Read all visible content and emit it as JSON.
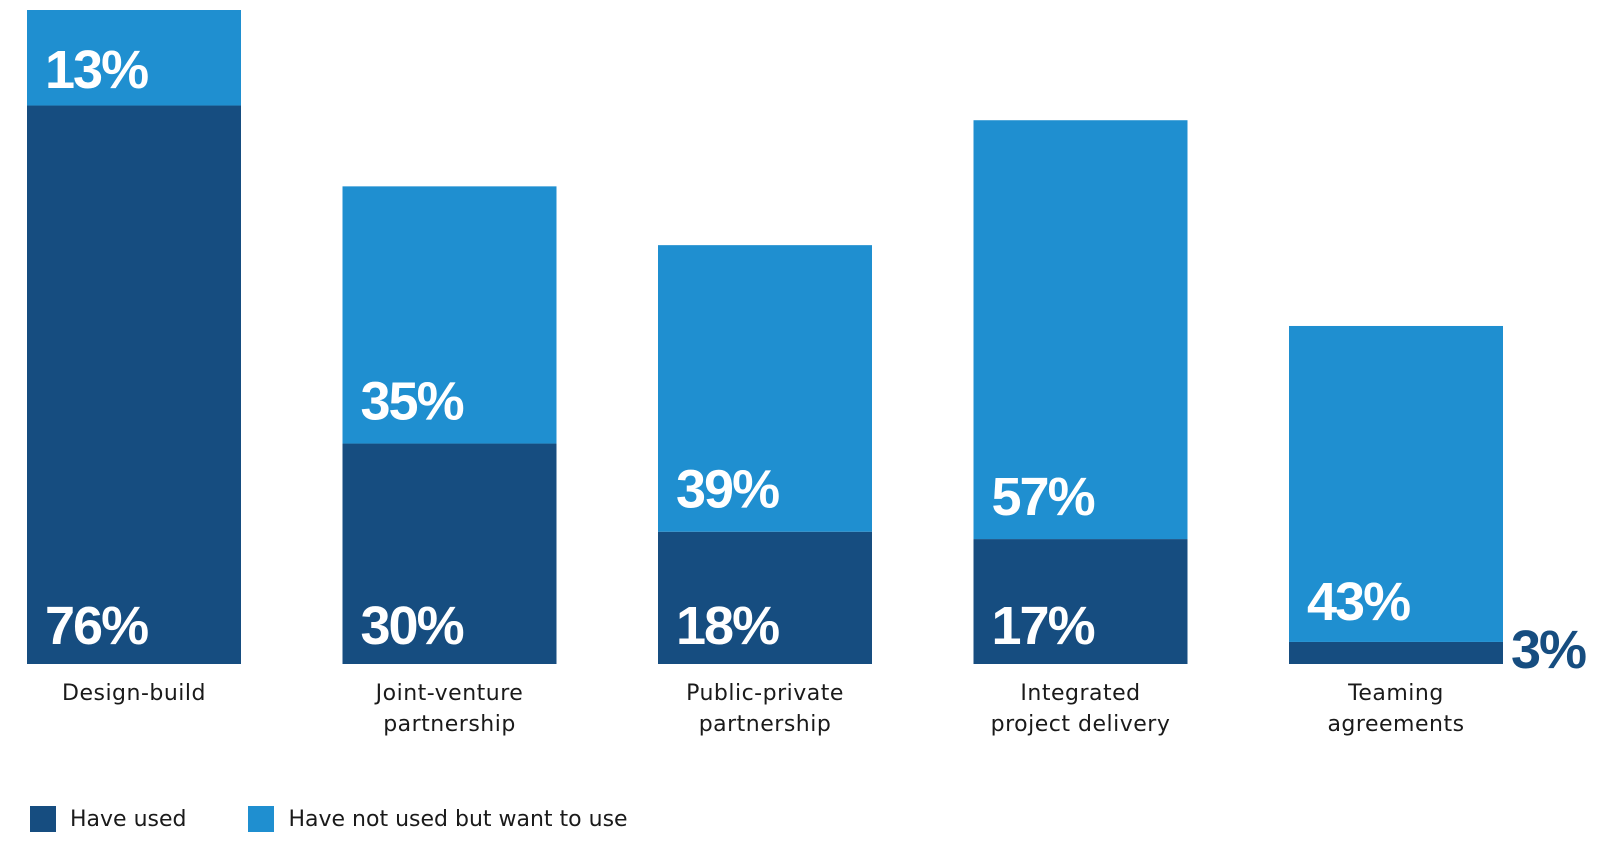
{
  "colors": {
    "have_used": "#164d80",
    "want_to_use": "#1f8fd0"
  },
  "chart_data": {
    "type": "bar",
    "stacked": true,
    "categories": [
      [
        "Design-build"
      ],
      [
        "Joint-venture",
        "partnership"
      ],
      [
        "Public-private",
        "partnership"
      ],
      [
        "Integrated",
        "project delivery"
      ],
      [
        "Teaming",
        "agreements"
      ]
    ],
    "series": [
      {
        "name": "Have used",
        "values": [
          76,
          30,
          18,
          17,
          3
        ],
        "labels": [
          "76%",
          "30%",
          "18%",
          "17%",
          "3%"
        ]
      },
      {
        "name": "Have not used but want to use",
        "values": [
          13,
          35,
          39,
          57,
          43
        ],
        "labels": [
          "13%",
          "35%",
          "39%",
          "57%",
          "43%"
        ]
      }
    ],
    "ylim": [
      0,
      89
    ],
    "grid": false,
    "legend_position": "bottom-left"
  },
  "legend": {
    "have_used": "Have used",
    "want_to_use": "Have not used but want to use"
  }
}
